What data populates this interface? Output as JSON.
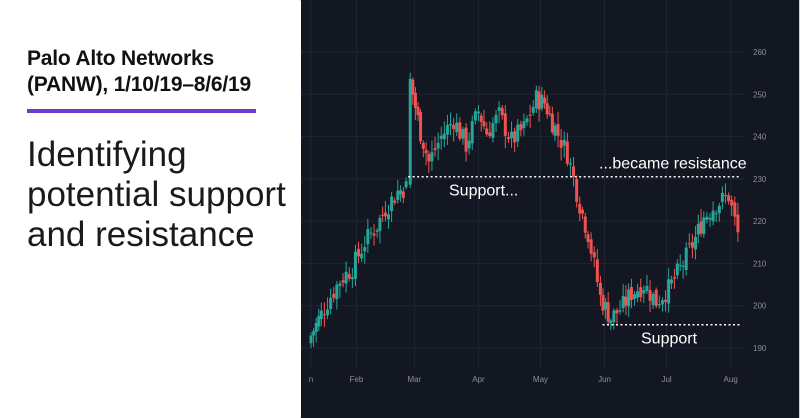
{
  "header": {
    "title": "Palo Alto Networks (PANW), 1/10/19–8/6/19",
    "subtitle": "Identifying potential support and resistance"
  },
  "colors": {
    "accent": "#6a3fc7",
    "chart_bg": "#131722",
    "up": "#26a69a",
    "down": "#ef5350"
  },
  "chart_data": {
    "type": "candlestick",
    "title": "Palo Alto Networks (PANW), 1/10/19–8/6/19",
    "ylim": [
      186,
      264
    ],
    "y_ticks": [
      190,
      200,
      210,
      220,
      230,
      240,
      250,
      260
    ],
    "x_ticks": [
      "n",
      "Feb",
      "Mar",
      "Apr",
      "May",
      "Jun",
      "Jul",
      "Aug"
    ],
    "grid": true,
    "levels": [
      {
        "label": "Support...",
        "value": 230.5,
        "from": "2019-02-26",
        "to": "2019-05-31"
      },
      {
        "label": "...became resistance",
        "value": 230.5,
        "from": "2019-05-31",
        "to": "2019-08-06"
      },
      {
        "label": "Support",
        "value": 195.5,
        "from": "2019-05-31",
        "to": "2019-08-06"
      }
    ],
    "closes": [
      {
        "date": "2019-01-10",
        "close": 193
      },
      {
        "date": "2019-01-15",
        "close": 198
      },
      {
        "date": "2019-01-18",
        "close": 201
      },
      {
        "date": "2019-01-24",
        "close": 206
      },
      {
        "date": "2019-01-30",
        "close": 209
      },
      {
        "date": "2019-02-05",
        "close": 215
      },
      {
        "date": "2019-02-11",
        "close": 219
      },
      {
        "date": "2019-02-15",
        "close": 223
      },
      {
        "date": "2019-02-21",
        "close": 227
      },
      {
        "date": "2019-02-25",
        "close": 228
      },
      {
        "date": "2019-02-27",
        "close": 253
      },
      {
        "date": "2019-03-04",
        "close": 241
      },
      {
        "date": "2019-03-08",
        "close": 234
      },
      {
        "date": "2019-03-14",
        "close": 240
      },
      {
        "date": "2019-03-20",
        "close": 244
      },
      {
        "date": "2019-03-26",
        "close": 238
      },
      {
        "date": "2019-04-01",
        "close": 246
      },
      {
        "date": "2019-04-05",
        "close": 241
      },
      {
        "date": "2019-04-11",
        "close": 245
      },
      {
        "date": "2019-04-17",
        "close": 239
      },
      {
        "date": "2019-04-23",
        "close": 242
      },
      {
        "date": "2019-04-29",
        "close": 249
      },
      {
        "date": "2019-05-03",
        "close": 248
      },
      {
        "date": "2019-05-08",
        "close": 242
      },
      {
        "date": "2019-05-14",
        "close": 236
      },
      {
        "date": "2019-05-20",
        "close": 224
      },
      {
        "date": "2019-05-24",
        "close": 217
      },
      {
        "date": "2019-05-30",
        "close": 202
      },
      {
        "date": "2019-06-04",
        "close": 197
      },
      {
        "date": "2019-06-10",
        "close": 200
      },
      {
        "date": "2019-06-14",
        "close": 203
      },
      {
        "date": "2019-06-20",
        "close": 205
      },
      {
        "date": "2019-06-26",
        "close": 201
      },
      {
        "date": "2019-07-02",
        "close": 204
      },
      {
        "date": "2019-07-09",
        "close": 210
      },
      {
        "date": "2019-07-15",
        "close": 216
      },
      {
        "date": "2019-07-19",
        "close": 221
      },
      {
        "date": "2019-07-25",
        "close": 224
      },
      {
        "date": "2019-07-31",
        "close": 226
      },
      {
        "date": "2019-08-06",
        "close": 214
      }
    ]
  }
}
